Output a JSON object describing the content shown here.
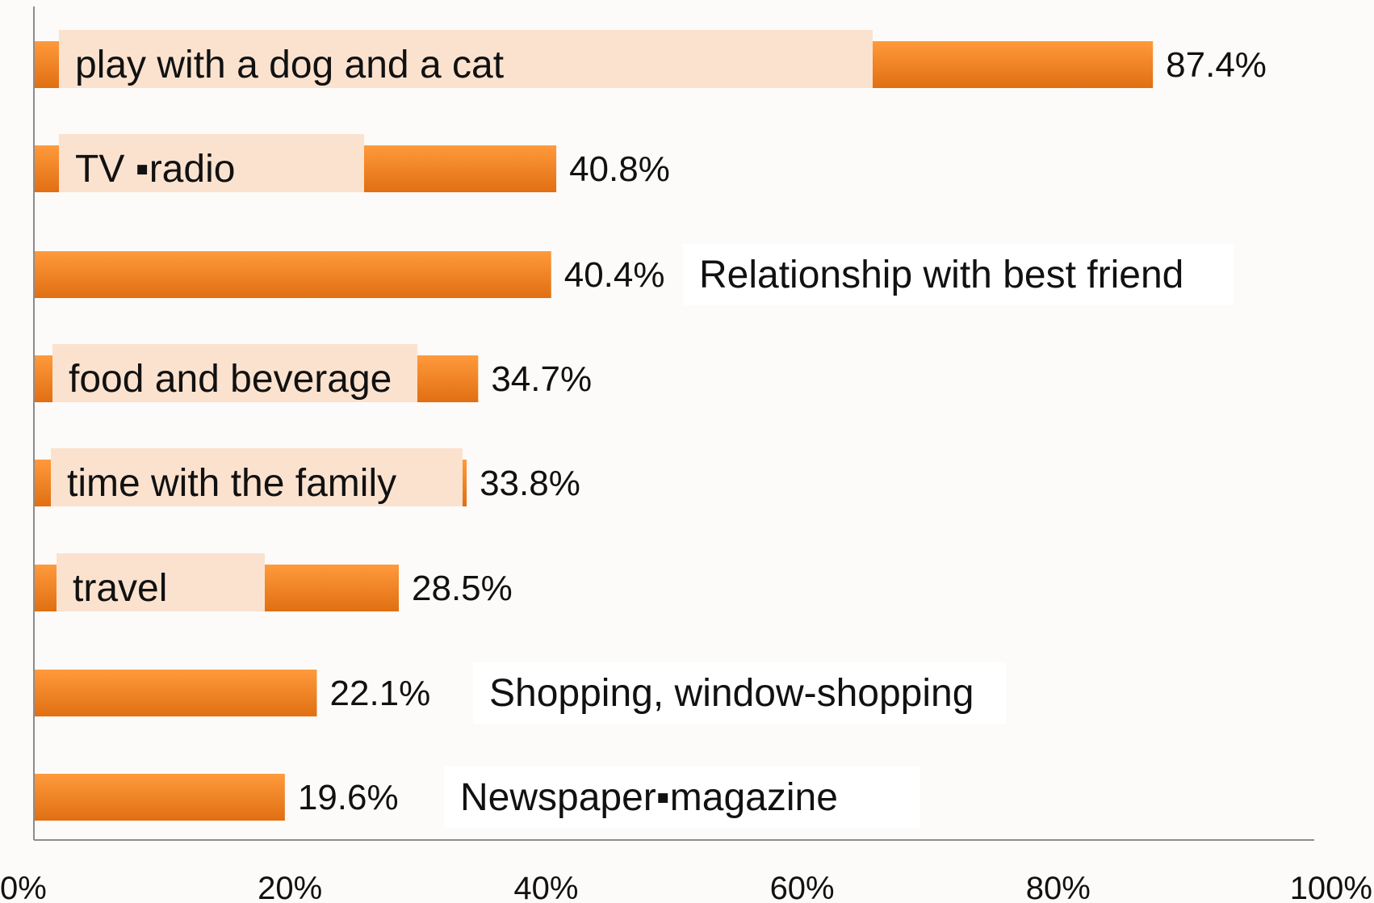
{
  "chart_data": {
    "type": "bar",
    "orientation": "horizontal",
    "categories": [
      "play with a dog and a cat",
      "TV ▪radio",
      "Relationship with best friend",
      "food and beverage",
      "time with the family",
      "travel",
      "Shopping, window-shopping",
      "Newspaper▪magazine"
    ],
    "values": [
      87.4,
      40.8,
      40.4,
      34.7,
      33.8,
      28.5,
      22.1,
      19.6
    ],
    "value_labels": [
      "87.4%",
      "40.8%",
      "40.4%",
      "34.7%",
      "33.8%",
      "28.5%",
      "22.1%",
      "19.6%"
    ],
    "xlim": [
      0,
      100
    ],
    "x_ticks": [
      0,
      20,
      40,
      60,
      80,
      100
    ],
    "x_tick_labels": [
      "0%",
      "20%",
      "40%",
      "60%",
      "80%",
      "100%"
    ],
    "title": "",
    "xlabel": "",
    "ylabel": "",
    "grid": false,
    "legend": "none",
    "colors": {
      "bar_top": "#ff9a3c",
      "bar_bottom": "#e06f12",
      "label_box": "#fbe2cf",
      "outside_label_box": "#ffffff",
      "axis": "#8c8c8c",
      "text": "#111111",
      "background": "#fcfbf9"
    }
  }
}
